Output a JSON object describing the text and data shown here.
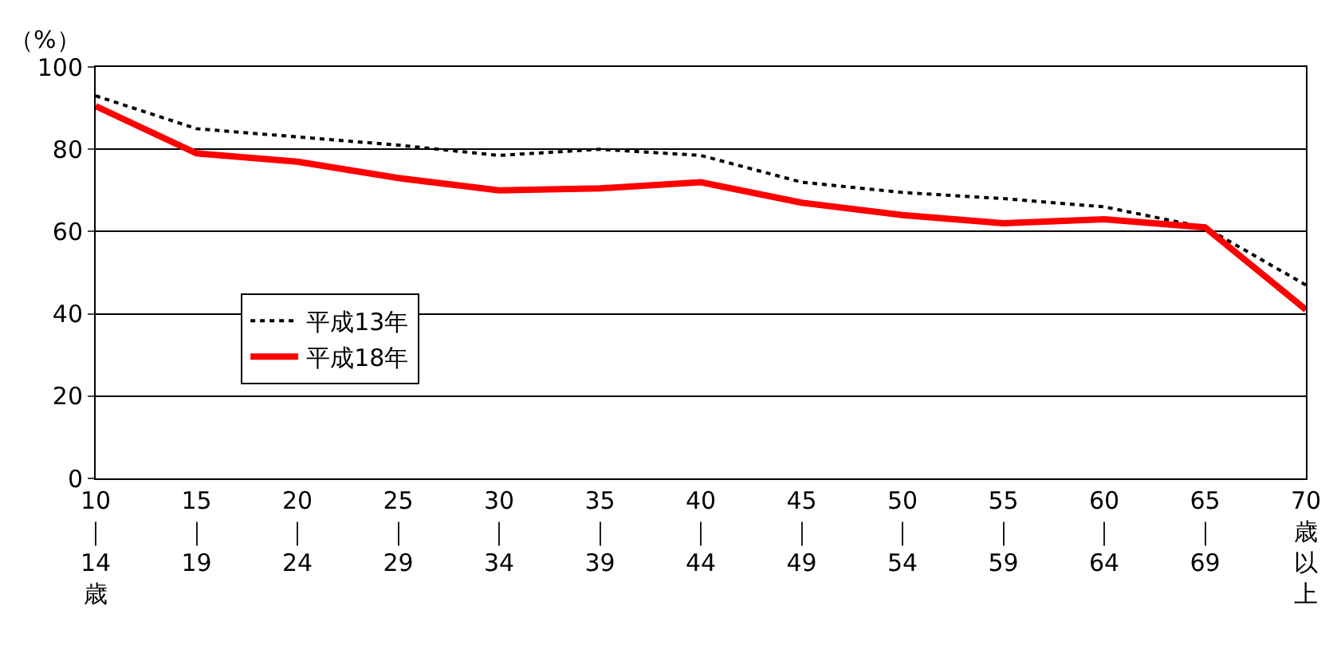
{
  "chart_data": {
    "type": "line",
    "ylabel": "（%）",
    "categories": [
      "10｜14歳",
      "15｜19",
      "20｜24",
      "25｜29",
      "30｜34",
      "35｜39",
      "40｜44",
      "45｜49",
      "50｜54",
      "55｜59",
      "60｜64",
      "65｜69",
      "70歳以上"
    ],
    "series": [
      {
        "name": "平成13年",
        "color": "#000000",
        "line_style": "dotted",
        "values": [
          93,
          85,
          83,
          81,
          78.5,
          80,
          78.5,
          72,
          69.5,
          68,
          66,
          61,
          47
        ]
      },
      {
        "name": "平成18年",
        "color": "#ff0000",
        "line_style": "solid",
        "values": [
          90.5,
          79,
          77,
          73,
          70,
          70.5,
          72,
          67,
          64,
          62,
          63,
          61,
          41
        ]
      }
    ],
    "ylim": [
      0,
      100
    ],
    "yticks": [
      0,
      20,
      40,
      60,
      80,
      100
    ],
    "grid": "y",
    "legend": "left",
    "marker": "none"
  }
}
